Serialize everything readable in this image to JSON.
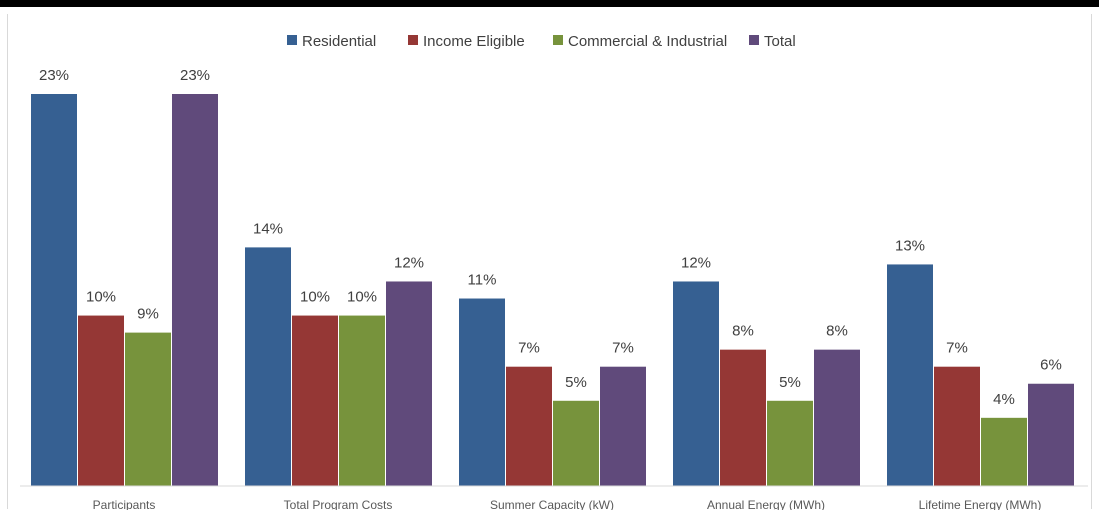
{
  "chart_data": {
    "type": "bar",
    "categories": [
      "Participants",
      "Total Program Costs",
      "Summer Capacity (kW)",
      "Annual Energy (MWh)",
      "Lifetime Energy (MWh)"
    ],
    "series": [
      {
        "name": "Residential",
        "values": [
          23,
          14,
          11,
          12,
          13
        ],
        "labels": [
          "23%",
          "14%",
          "11%",
          "12%",
          "13%"
        ],
        "color": "#366092"
      },
      {
        "name": "Income Eligible",
        "values": [
          10,
          10,
          7,
          8,
          7
        ],
        "labels": [
          "10%",
          "10%",
          "7%",
          "8%",
          "7%"
        ],
        "color": "#953735"
      },
      {
        "name": "Commercial & Industrial",
        "values": [
          9,
          10,
          5,
          5,
          4
        ],
        "labels": [
          "9%",
          "10%",
          "5%",
          "5%",
          "4%"
        ],
        "color": "#77933C"
      },
      {
        "name": "Total",
        "values": [
          23,
          12,
          7,
          8,
          6
        ],
        "labels": [
          "23%",
          "12%",
          "7%",
          "8%",
          "6%"
        ],
        "color": "#604A7B"
      }
    ],
    "title": "",
    "xlabel": "",
    "ylabel": "",
    "ylim": [
      0,
      25
    ],
    "grid": false,
    "legend_position": "top-center",
    "value_label_format": "percent"
  }
}
